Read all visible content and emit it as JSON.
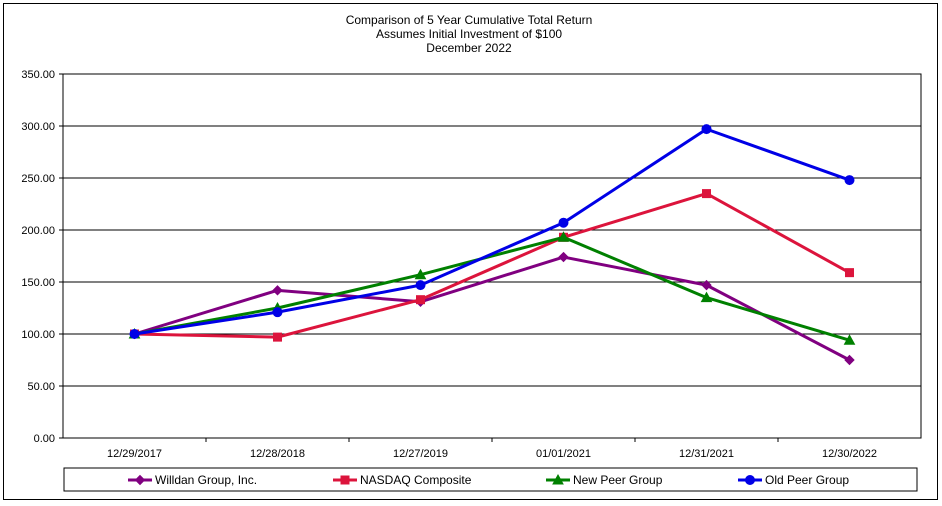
{
  "chart_data": {
    "type": "line",
    "title_lines": [
      "Comparison of 5 Year Cumulative Total Return",
      "Assumes Initial Investment of $100",
      "December 2022"
    ],
    "categories": [
      "12/29/2017",
      "12/28/2018",
      "12/27/2019",
      "01/01/2021",
      "12/31/2021",
      "12/30/2022"
    ],
    "y_ticks": [
      "0.00",
      "50.00",
      "100.00",
      "150.00",
      "200.00",
      "250.00",
      "300.00",
      "350.00"
    ],
    "ylim": [
      0,
      350
    ],
    "grid": true,
    "legend_position": "bottom",
    "series": [
      {
        "name": "Willdan Group, Inc.",
        "color": "#800080",
        "marker": "diamond",
        "values": [
          100,
          142,
          131,
          174,
          147,
          75
        ]
      },
      {
        "name": "NASDAQ Composite",
        "color": "#dc143c",
        "marker": "square",
        "values": [
          100,
          97,
          133,
          193,
          235,
          159
        ]
      },
      {
        "name": "New Peer Group",
        "color": "#008000",
        "marker": "triangle",
        "values": [
          100,
          125,
          157,
          193,
          135,
          94
        ]
      },
      {
        "name": "Old Peer Group",
        "color": "#0000e6",
        "marker": "circle",
        "values": [
          100,
          121,
          147,
          207,
          297,
          248
        ]
      }
    ]
  }
}
